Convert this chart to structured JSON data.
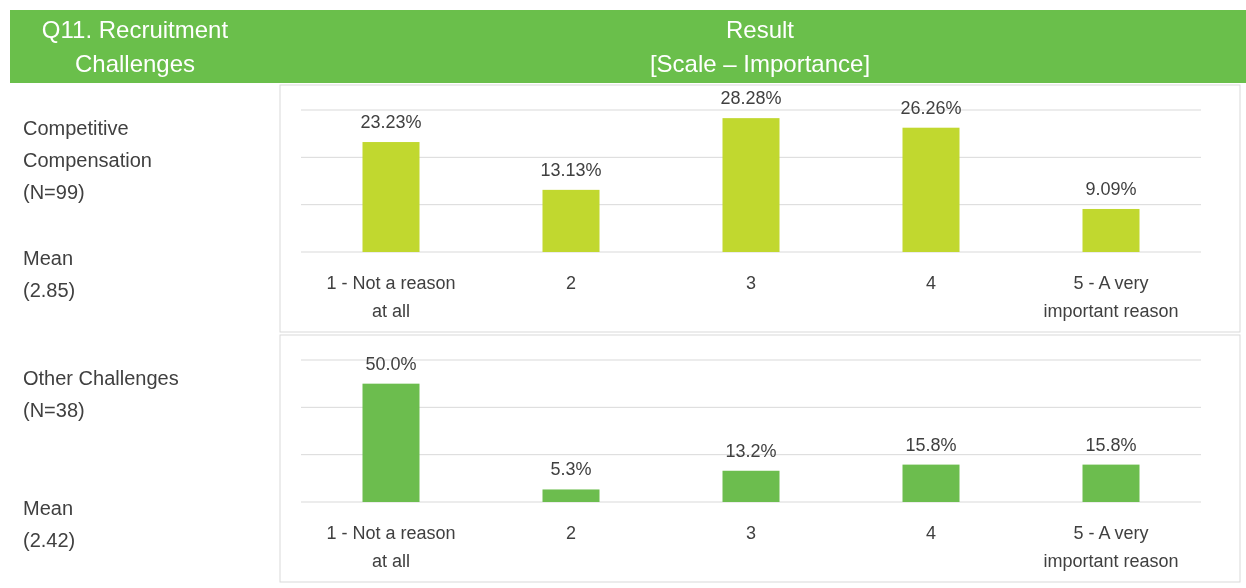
{
  "chart_data": [
    {
      "type": "other",
      "annotations": [
        "Q11. Recruitment\nChallenges",
        "Result\n[Scale – Importance]"
      ]
    },
    {
      "type": "bar",
      "categories": [
        "1 - Not a reason at all",
        "2",
        "3",
        "4",
        "5 - A very important reason"
      ],
      "values": [
        23.23,
        13.13,
        28.28,
        26.26,
        9.09
      ],
      "color": "#c1d82f",
      "ylim": [
        0,
        30
      ],
      "yticks": [
        {
          "value": 0,
          "label": null
        },
        {
          "value": 10,
          "label": null
        },
        {
          "value": 20,
          "label": null
        },
        {
          "value": 30,
          "label": null
        }
      ],
      "grid": "y",
      "tick_labels": "x",
      "data_labels": true,
      "value_labels": [
        "23.23%",
        "13.13%",
        "28.28%",
        "26.26%",
        "9.09%"
      ],
      "annotations": [
        "Competitive\nCompensation\n(N=99)",
        "Mean\n(2.85)"
      ]
    },
    {
      "type": "bar",
      "categories": [
        "1 - Not a reason at all",
        "2",
        "3",
        "4",
        "5 - A very important reason"
      ],
      "values": [
        50.0,
        5.3,
        13.2,
        15.8,
        15.8
      ],
      "color": "#6cbd4e",
      "ylim": [
        0,
        60
      ],
      "yticks": [
        {
          "value": 0,
          "label": null
        },
        {
          "value": 20,
          "label": null
        },
        {
          "value": 40,
          "label": null
        },
        {
          "value": 60,
          "label": null
        }
      ],
      "grid": "y",
      "tick_labels": "x",
      "data_labels": true,
      "value_labels": [
        "50.0%",
        "5.3%",
        "13.2%",
        "15.8%",
        "15.8%"
      ],
      "annotations": [
        "Other Challenges\n(N=38)",
        "Mean\n(2.42)"
      ]
    }
  ]
}
